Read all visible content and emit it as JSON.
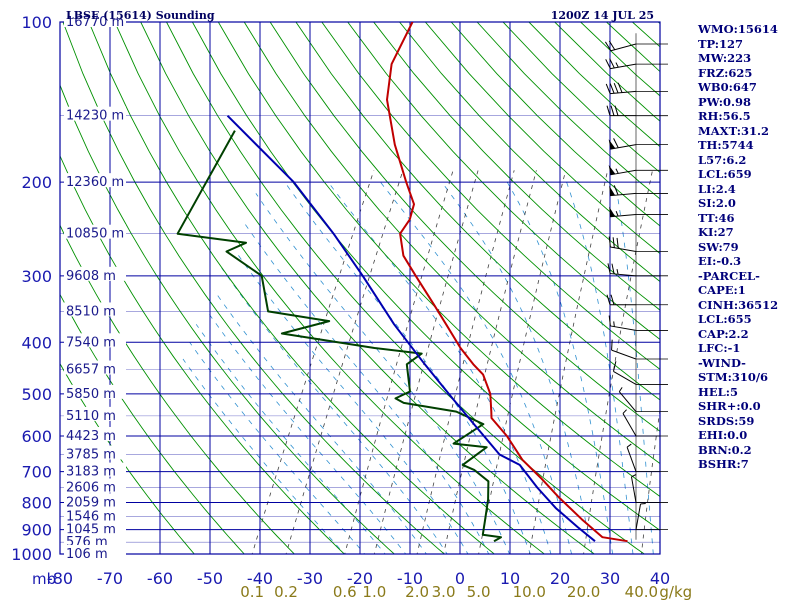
{
  "header": {
    "station": "LBSE (15614) Sounding",
    "time": "1200Z 14 JUL 25"
  },
  "colors": {
    "grid": "#0000a0",
    "dry_adiabat": "#009000",
    "temperature": "#c00000",
    "dewpoint": "#004000",
    "parcel": "#0000b0",
    "mixing_ratio": "#404040",
    "moist_adiabat": "#3090d0",
    "index_text": "#00007a"
  },
  "corner_label": "mb",
  "indices": [
    "WMO:15614",
    "TP:127",
    "MW:223",
    "FRZ:625",
    "WB0:647",
    "PW:0.98",
    "RH:56.5",
    "MAXT:31.2",
    "TH:5744",
    "L57:6.2",
    "LCL:659",
    "LI:2.4",
    "SI:2.0",
    "TT:46",
    "KI:27",
    "SW:79",
    "EI:-0.3",
    "-PARCEL-",
    "CAPE:1",
    "CINH:36512",
    "LCL:655",
    "CAP:2.2",
    "LFC:-1",
    "-WIND-",
    "STM:310/6",
    "HEL:5",
    "SHR+:0.0",
    "SRDS:59",
    "EHI:0.0",
    "BRN:0.2",
    "BSHR:7"
  ],
  "chart_data": {
    "type": "line",
    "chart_kind": "skew-T log-P sounding",
    "y_scale": "log",
    "ylim_mb": [
      1000,
      100
    ],
    "xlim_c": [
      -80,
      40
    ],
    "pressure_levels_mb": [
      "100",
      "200",
      "300",
      "400",
      "500",
      "600",
      "700",
      "800",
      "900",
      "1000"
    ],
    "temperature_ticks_c": [
      "-80",
      "-70",
      "-60",
      "-50",
      "-40",
      "-30",
      "-20",
      "-10",
      "0",
      "10",
      "20",
      "30",
      "40"
    ],
    "mixing_ratio_labels": [
      "0.1",
      "0.2",
      "0.6",
      "1.0",
      "2.0",
      "3.0",
      "5.0",
      "10.0",
      "20.0",
      "40.0"
    ],
    "mixing_ratio_unit": "g/kg",
    "height_labels": [
      {
        "text": "16770 m",
        "p": 100
      },
      {
        "text": "14230 m",
        "p": 150
      },
      {
        "text": "12360 m",
        "p": 200
      },
      {
        "text": "10850 m",
        "p": 250
      },
      {
        "text": "9608 m",
        "p": 300
      },
      {
        "text": "8510 m",
        "p": 350
      },
      {
        "text": "7540 m",
        "p": 400
      },
      {
        "text": "6657 m",
        "p": 450
      },
      {
        "text": "5850 m",
        "p": 500
      },
      {
        "text": "5110 m",
        "p": 550
      },
      {
        "text": "4423 m",
        "p": 600
      },
      {
        "text": "3785 m",
        "p": 650
      },
      {
        "text": "3183 m",
        "p": 700
      },
      {
        "text": "2606 m",
        "p": 750
      },
      {
        "text": "2059 m",
        "p": 800
      },
      {
        "text": "1546 m",
        "p": 850
      },
      {
        "text": "1045 m",
        "p": 900
      },
      {
        "text": "576 m",
        "p": 950
      },
      {
        "text": "106 m",
        "p": 1000
      }
    ],
    "series": [
      {
        "role": "temperature",
        "points": [
          [
            -63.5,
            100
          ],
          [
            -63.4,
            120
          ],
          [
            -60.7,
            140
          ],
          [
            -54.6,
            170
          ],
          [
            -48.5,
            200
          ],
          [
            -44.7,
            220
          ],
          [
            -44,
            235
          ],
          [
            -44.5,
            250
          ],
          [
            -41.6,
            275
          ],
          [
            -37.1,
            300
          ],
          [
            -30.5,
            340
          ],
          [
            -26.1,
            370
          ],
          [
            -20.8,
            410
          ],
          [
            -16.6,
            440
          ],
          [
            -13.6,
            460
          ],
          [
            -10.2,
            500
          ],
          [
            -8.2,
            540
          ],
          [
            -7.5,
            555
          ],
          [
            -2.6,
            600
          ],
          [
            2.9,
            665
          ],
          [
            8.5,
            720
          ],
          [
            13.8,
            780
          ],
          [
            20.8,
            860
          ],
          [
            26.8,
            930
          ],
          [
            32.2,
            946
          ]
        ]
      },
      {
        "role": "dewpoint",
        "points": [
          [
            -88,
            160
          ],
          [
            -89,
            250
          ],
          [
            -74.4,
            260
          ],
          [
            -77.4,
            270
          ],
          [
            -67.9,
            300
          ],
          [
            -63,
            350
          ],
          [
            -49.8,
            365
          ],
          [
            -58,
            385
          ],
          [
            -38,
            410
          ],
          [
            -28,
            420
          ],
          [
            -29.9,
            440
          ],
          [
            -26.5,
            495
          ],
          [
            -28.7,
            510
          ],
          [
            -26.6,
            520
          ],
          [
            -15.2,
            540
          ],
          [
            -8.5,
            570
          ],
          [
            -12.5,
            620
          ],
          [
            -5.5,
            630
          ],
          [
            -8.5,
            680
          ],
          [
            -5.7,
            695
          ],
          [
            -1.7,
            730
          ],
          [
            0.1,
            790
          ],
          [
            1.7,
            870
          ],
          [
            2.6,
            920
          ],
          [
            6.5,
            930
          ],
          [
            5.5,
            946
          ]
        ]
      },
      {
        "role": "parcel",
        "points": [
          [
            -91,
            150
          ],
          [
            -71,
            200
          ],
          [
            -57.8,
            250
          ],
          [
            -47.7,
            300
          ],
          [
            -36.5,
            370
          ],
          [
            -26.3,
            440
          ],
          [
            -17.3,
            510
          ],
          [
            -10.4,
            570
          ],
          [
            -2.2,
            650
          ],
          [
            2.9,
            680
          ],
          [
            8.7,
            750
          ],
          [
            14.5,
            820
          ],
          [
            20.8,
            890
          ],
          [
            25.7,
            946
          ]
        ]
      }
    ],
    "wind_barbs": [
      {
        "p": 110,
        "dir": 255,
        "kt": 20
      },
      {
        "p": 120,
        "dir": 260,
        "kt": 25
      },
      {
        "p": 135,
        "dir": 265,
        "kt": 40
      },
      {
        "p": 150,
        "dir": 270,
        "kt": 30
      },
      {
        "p": 170,
        "dir": 260,
        "kt": 60
      },
      {
        "p": 190,
        "dir": 260,
        "kt": 55
      },
      {
        "p": 210,
        "dir": 265,
        "kt": 60
      },
      {
        "p": 230,
        "dir": 265,
        "kt": 55
      },
      {
        "p": 270,
        "dir": 280,
        "kt": 30
      },
      {
        "p": 300,
        "dir": 275,
        "kt": 25
      },
      {
        "p": 340,
        "dir": 270,
        "kt": 20
      },
      {
        "p": 380,
        "dir": 280,
        "kt": 15
      },
      {
        "p": 430,
        "dir": 290,
        "kt": 10
      },
      {
        "p": 480,
        "dir": 300,
        "kt": 10
      },
      {
        "p": 540,
        "dir": 320,
        "kt": 5
      },
      {
        "p": 600,
        "dir": 330,
        "kt": 5
      },
      {
        "p": 700,
        "dir": 340,
        "kt": 5
      },
      {
        "p": 800,
        "dir": 350,
        "kt": 5
      },
      {
        "p": 900,
        "dir": 10,
        "kt": 5
      }
    ]
  }
}
